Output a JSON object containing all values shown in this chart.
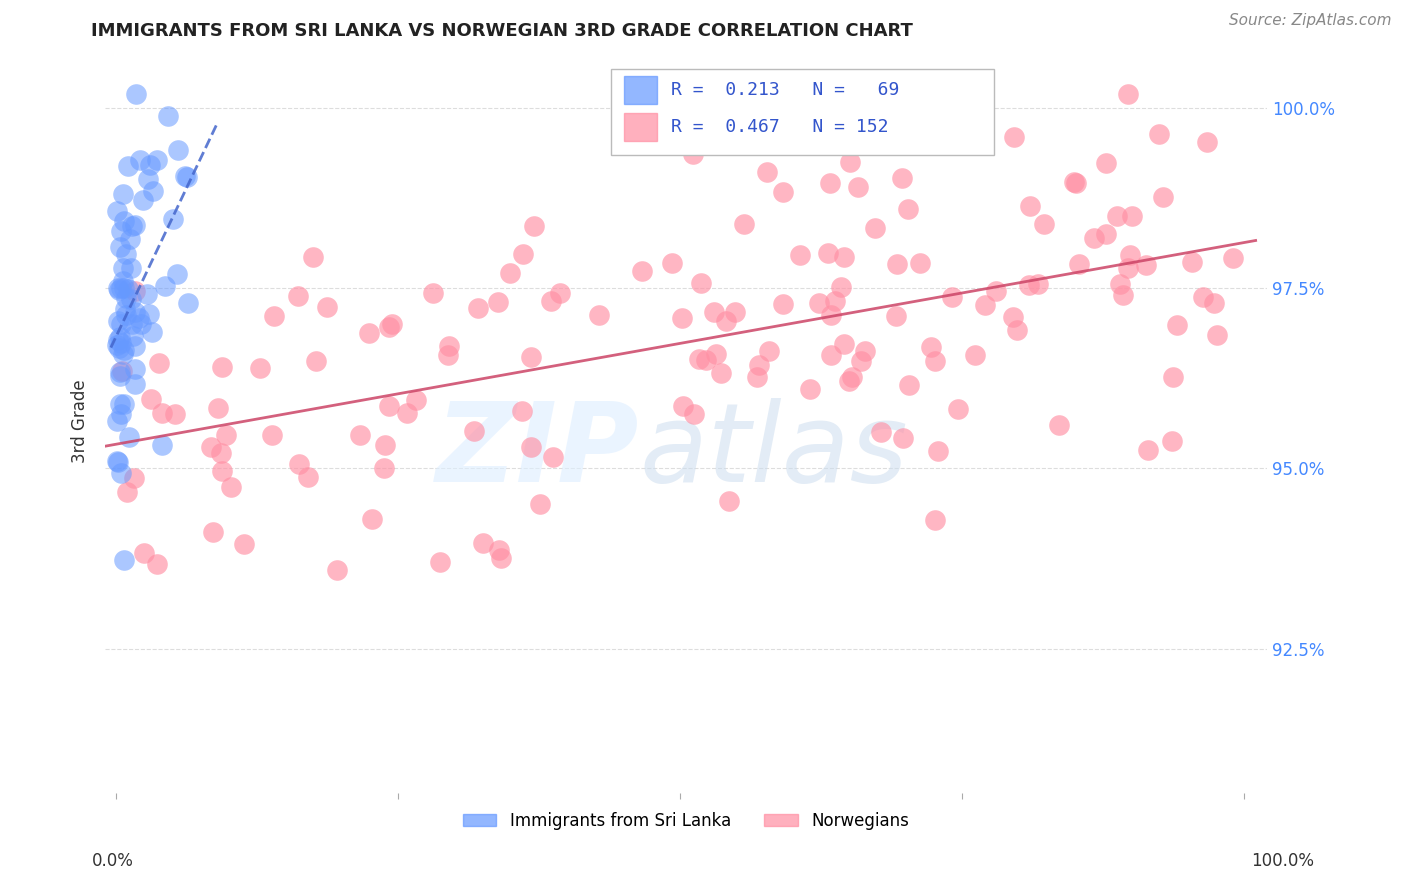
{
  "title": "IMMIGRANTS FROM SRI LANKA VS NORWEGIAN 3RD GRADE CORRELATION CHART",
  "source": "Source: ZipAtlas.com",
  "ylabel": "3rd Grade",
  "right_ytick_vals": [
    1.0,
    0.975,
    0.95,
    0.925
  ],
  "right_ytick_labels": [
    "100.0%",
    "97.5%",
    "95.0%",
    "92.5%"
  ],
  "legend_label1": "Immigrants from Sri Lanka",
  "legend_label2": "Norwegians",
  "legend_r1": "R =  0.213",
  "legend_n1": "N =   69",
  "legend_r2": "R =  0.467",
  "legend_n2": "N = 152",
  "blue_color": "#6699ff",
  "pink_color": "#ff8fa3",
  "blue_line_color": "#4466cc",
  "pink_line_color": "#cc4466",
  "sri_lanka_n": 69,
  "norwegian_n": 152,
  "xmin": -0.01,
  "xmax": 1.02,
  "ymin": 0.905,
  "ymax": 1.008,
  "background_color": "#ffffff",
  "grid_color": "#dddddd"
}
